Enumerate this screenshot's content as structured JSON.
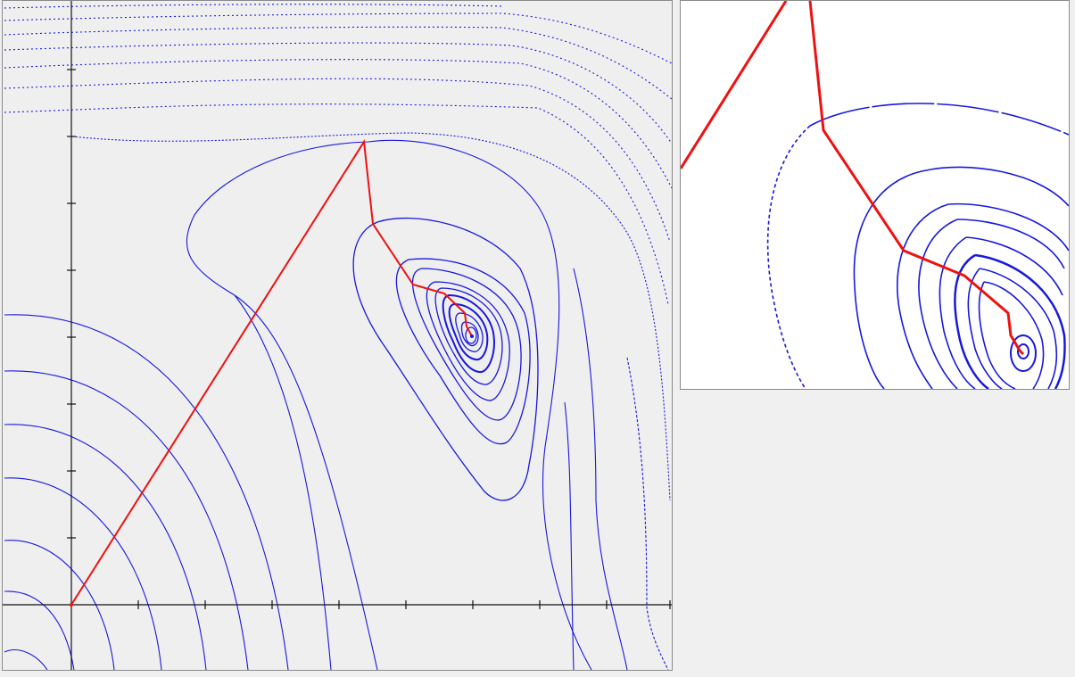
{
  "app": {
    "main_view": "contour-plot-with-optimization-path",
    "zoom_view": "zoomed-detail"
  },
  "colors": {
    "background": "#efefef",
    "zoom_background": "#ffffff",
    "contour": "#1010dd",
    "path": "#ee1111",
    "axis": "#111111",
    "border": "#8a8a8a"
  },
  "icons": {
    "start_marker": "origin-point-icon",
    "end_marker": "minimum-point-icon"
  }
}
